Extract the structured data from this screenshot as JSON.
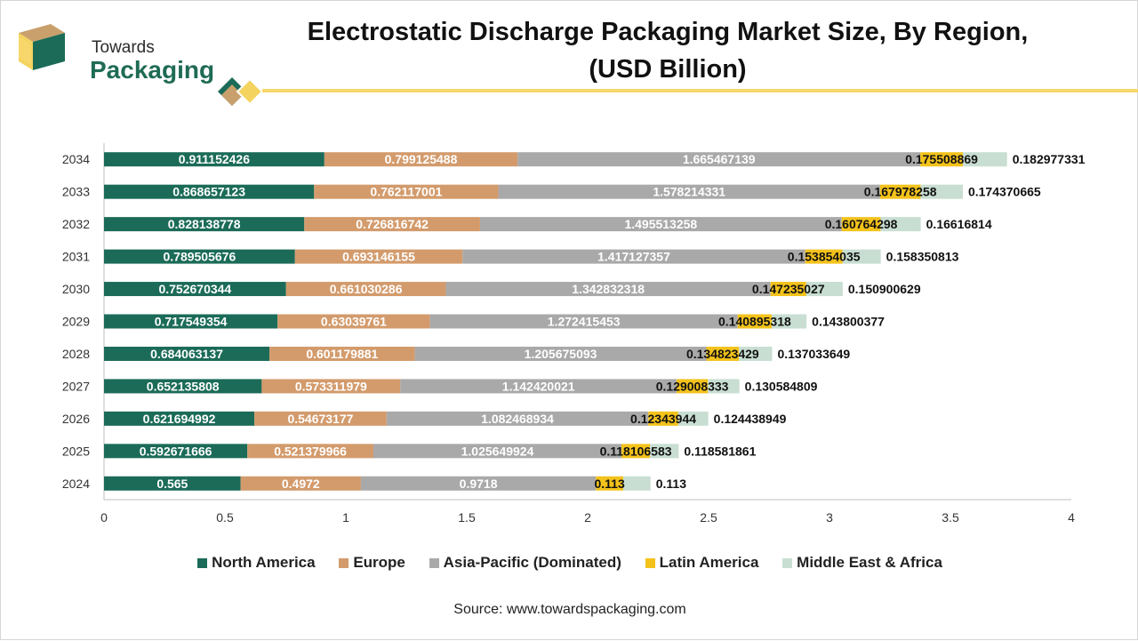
{
  "brand": {
    "line1": "Towards",
    "line2": "Packaging"
  },
  "title_line1": "Electrostatic Discharge Packaging Market Size, By Region,",
  "title_line2": "(USD Billion)",
  "source": "Source: www.towardspackaging.com",
  "colors": {
    "north_america": "#1b6b58",
    "europe": "#d39b6c",
    "asia_pacific": "#a9a9a9",
    "latin_america": "#f3c21b",
    "middle_east_africa": "#c8ded2",
    "accent_line": "#f7d66b"
  },
  "chart_data": {
    "type": "bar",
    "orientation": "horizontal",
    "stacked": true,
    "categories": [
      "2034",
      "2033",
      "2032",
      "2031",
      "2030",
      "2029",
      "2028",
      "2027",
      "2026",
      "2025",
      "2024"
    ],
    "series": [
      {
        "name": "North America",
        "values": [
          0.911152426,
          0.868657123,
          0.828138778,
          0.789505676,
          0.752670344,
          0.717549354,
          0.684063137,
          0.652135808,
          0.621694992,
          0.592671666,
          0.565
        ],
        "labels": [
          "0.911152426",
          "0.868657123",
          "0.828138778",
          "0.789505676",
          "0.752670344",
          "0.717549354",
          "0.684063137",
          "0.652135808",
          "0.621694992",
          "0.592671666",
          "0.565"
        ]
      },
      {
        "name": "Europe",
        "values": [
          0.799125488,
          0.762117001,
          0.726816742,
          0.693146155,
          0.661030286,
          0.63039761,
          0.601179881,
          0.573311979,
          0.54673177,
          0.521379966,
          0.4972
        ],
        "labels": [
          "0.799125488",
          "0.762117001",
          "0.726816742",
          "0.693146155",
          "0.661030286",
          "0.63039761",
          "0.601179881",
          "0.573311979",
          "0.54673177",
          "0.521379966",
          "0.4972"
        ]
      },
      {
        "name": "Asia-Pacific (Dominated)",
        "values": [
          1.665467139,
          1.578214331,
          1.495513258,
          1.417127357,
          1.342832318,
          1.272415453,
          1.205675093,
          1.142420021,
          1.082468934,
          1.025649924,
          0.9718
        ],
        "labels": [
          "1.665467139",
          "1.578214331",
          "1.495513258",
          "1.417127357",
          "1.342832318",
          "1.272415453",
          "1.205675093",
          "1.142420021",
          "1.082468934",
          "1.025649924",
          "0.9718"
        ]
      },
      {
        "name": "Latin America",
        "values": [
          0.175508869,
          0.167978258,
          0.160764298,
          0.153854035,
          0.147235027,
          0.140895318,
          0.134823429,
          0.129008333,
          0.12343944,
          0.118106583,
          0.113
        ],
        "labels": [
          "0.175508869",
          "0.167978258",
          "0.160764298",
          "0.153854035",
          "0.147235027",
          "0.140895318",
          "0.134823429",
          "0.129008333",
          "0.12343944",
          "0.118106583",
          "0.113"
        ]
      },
      {
        "name": "Middle East & Africa",
        "values": [
          0.182977331,
          0.174370665,
          0.16616814,
          0.158350813,
          0.150900629,
          0.143800377,
          0.137033649,
          0.130584809,
          0.124438949,
          0.118581861,
          0.113
        ],
        "labels": [
          "0.182977331",
          "0.174370665",
          "0.16616814",
          "0.158350813",
          "0.150900629",
          "0.143800377",
          "0.137033649",
          "0.130584809",
          "0.124438949",
          "0.118581861",
          "0.113"
        ]
      }
    ],
    "xlim": [
      0,
      4
    ],
    "xticks": [
      "0",
      "0.5",
      "1",
      "1.5",
      "2",
      "2.5",
      "3",
      "3.5",
      "4"
    ],
    "grid": false,
    "legend_position": "bottom"
  }
}
